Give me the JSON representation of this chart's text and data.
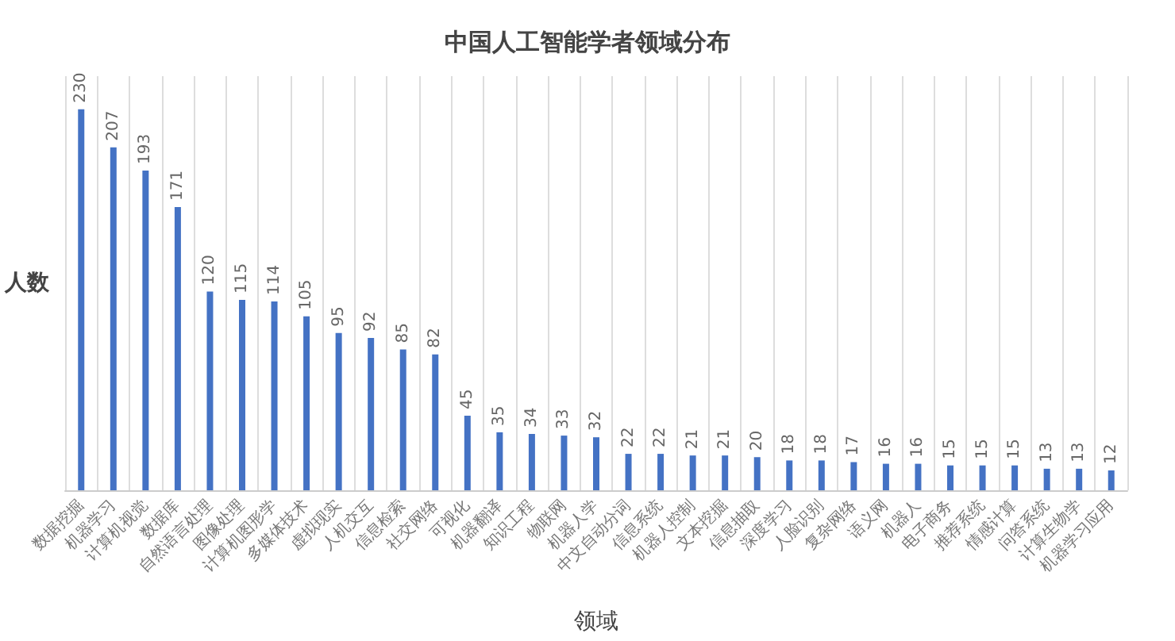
{
  "chart_data": {
    "type": "bar",
    "title": "中国人工智能学者领域分布",
    "xlabel": "领域",
    "ylabel": "人数",
    "categories": [
      "数据挖掘",
      "机器学习",
      "计算机视觉",
      "数据库",
      "自然语言处理",
      "图像处理",
      "计算机图形学",
      "多媒体技术",
      "虚拟现实",
      "人机交互",
      "信息检索",
      "社交网络",
      "可视化",
      "机器翻译",
      "知识工程",
      "物联网",
      "机器人学",
      "中文自动分词",
      "信息系统",
      "机器人控制",
      "文本挖掘",
      "信息抽取",
      "深度学习",
      "人脸识别",
      "复杂网络",
      "语义网",
      "机器人",
      "电子商务",
      "推荐系统",
      "情感计算",
      "问答系统",
      "计算生物学",
      "机器学习应用"
    ],
    "values": [
      230,
      207,
      193,
      171,
      120,
      115,
      114,
      105,
      95,
      92,
      85,
      82,
      45,
      35,
      34,
      33,
      32,
      22,
      22,
      21,
      21,
      20,
      18,
      18,
      17,
      16,
      16,
      15,
      15,
      15,
      13,
      13,
      12
    ],
    "color": "#4472c4",
    "data_labels": true,
    "grid": "x"
  }
}
